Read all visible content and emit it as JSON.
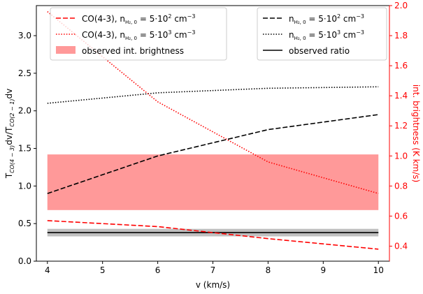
{
  "chart_data": {
    "type": "line",
    "xlabel": "v (km/s)",
    "xlim": [
      3.8,
      10.2
    ],
    "xticks": [
      4,
      5,
      6,
      7,
      8,
      9,
      10
    ],
    "y_left": {
      "label_main": "T",
      "label_sub1": "CO(4 − 3)",
      "label_mid": "dv/T",
      "label_sub2": "CO(2 − 1)",
      "label_end": "dv",
      "lim": [
        0.0,
        3.4
      ],
      "ticks": [
        0.0,
        0.5,
        1.0,
        1.5,
        2.0,
        2.5,
        3.0
      ],
      "tick_labels": [
        "0.0",
        "0.5",
        "1.0",
        "1.5",
        "2.0",
        "2.5",
        "3.0"
      ],
      "color": "#000000"
    },
    "y_right": {
      "label": "int. brightness (K km/s)",
      "lim": [
        0.3,
        2.0
      ],
      "ticks": [
        0.4,
        0.6,
        0.8,
        1.0,
        1.2,
        1.4,
        1.6,
        1.8,
        2.0
      ],
      "tick_labels": [
        "0.4",
        "0.6",
        "0.8",
        "1.0",
        "1.2",
        "1.4",
        "1.6",
        "1.8",
        "2.0"
      ],
      "color": "#ff0000"
    },
    "series": [
      {
        "axis": "left",
        "style": "dashed",
        "color": "#000000",
        "x": [
          4,
          6,
          8,
          10
        ],
        "y": [
          0.9,
          1.4,
          1.75,
          1.95
        ]
      },
      {
        "axis": "left",
        "style": "dotted",
        "color": "#000000",
        "x": [
          4,
          6,
          8,
          10
        ],
        "y": [
          2.1,
          2.24,
          2.3,
          2.32
        ]
      },
      {
        "axis": "right",
        "style": "dashed",
        "color": "#ff0000",
        "x": [
          4,
          6,
          8,
          10
        ],
        "y": [
          0.57,
          0.53,
          0.45,
          0.38
        ]
      },
      {
        "axis": "right",
        "style": "dotted",
        "color": "#ff0000",
        "x": [
          4,
          6,
          8,
          10
        ],
        "y": [
          1.96,
          1.36,
          0.96,
          0.75
        ]
      }
    ],
    "observed_ratio": {
      "value": 0.38,
      "band": [
        0.33,
        0.43
      ],
      "color": "#000000",
      "band_color": "#bfbfbf"
    },
    "observed_brightness_band": {
      "range": [
        0.64,
        1.01
      ],
      "color": "#ff9999"
    },
    "legend_left": {
      "placement": "upper-left",
      "entries": [
        {
          "kind": "dashed",
          "color": "#ff0000",
          "pre": "CO(4-3), n",
          "sub": "H₂, 0",
          "post": " = 5·10",
          "sup": "2",
          "unit": " cm",
          "unit_sup": "−3"
        },
        {
          "kind": "dotted",
          "color": "#ff0000",
          "pre": "CO(4-3), n",
          "sub": "H₂, 0",
          "post": " = 5·10",
          "sup": "3",
          "unit": " cm",
          "unit_sup": "−3"
        },
        {
          "kind": "patch",
          "color": "#ff9999",
          "text": "observed int. brightness"
        }
      ]
    },
    "legend_right": {
      "placement": "upper-right",
      "entries": [
        {
          "kind": "dashed",
          "color": "#000000",
          "pre": "n",
          "sub": "H₂, 0",
          "post": " = 5·10",
          "sup": "2",
          "unit": " cm",
          "unit_sup": "−3"
        },
        {
          "kind": "dotted",
          "color": "#000000",
          "pre": "n",
          "sub": "H₂, 0",
          "post": " = 5·10",
          "sup": "3",
          "unit": " cm",
          "unit_sup": "−3"
        },
        {
          "kind": "solid",
          "color": "#000000",
          "text": "observed ratio"
        }
      ]
    }
  }
}
